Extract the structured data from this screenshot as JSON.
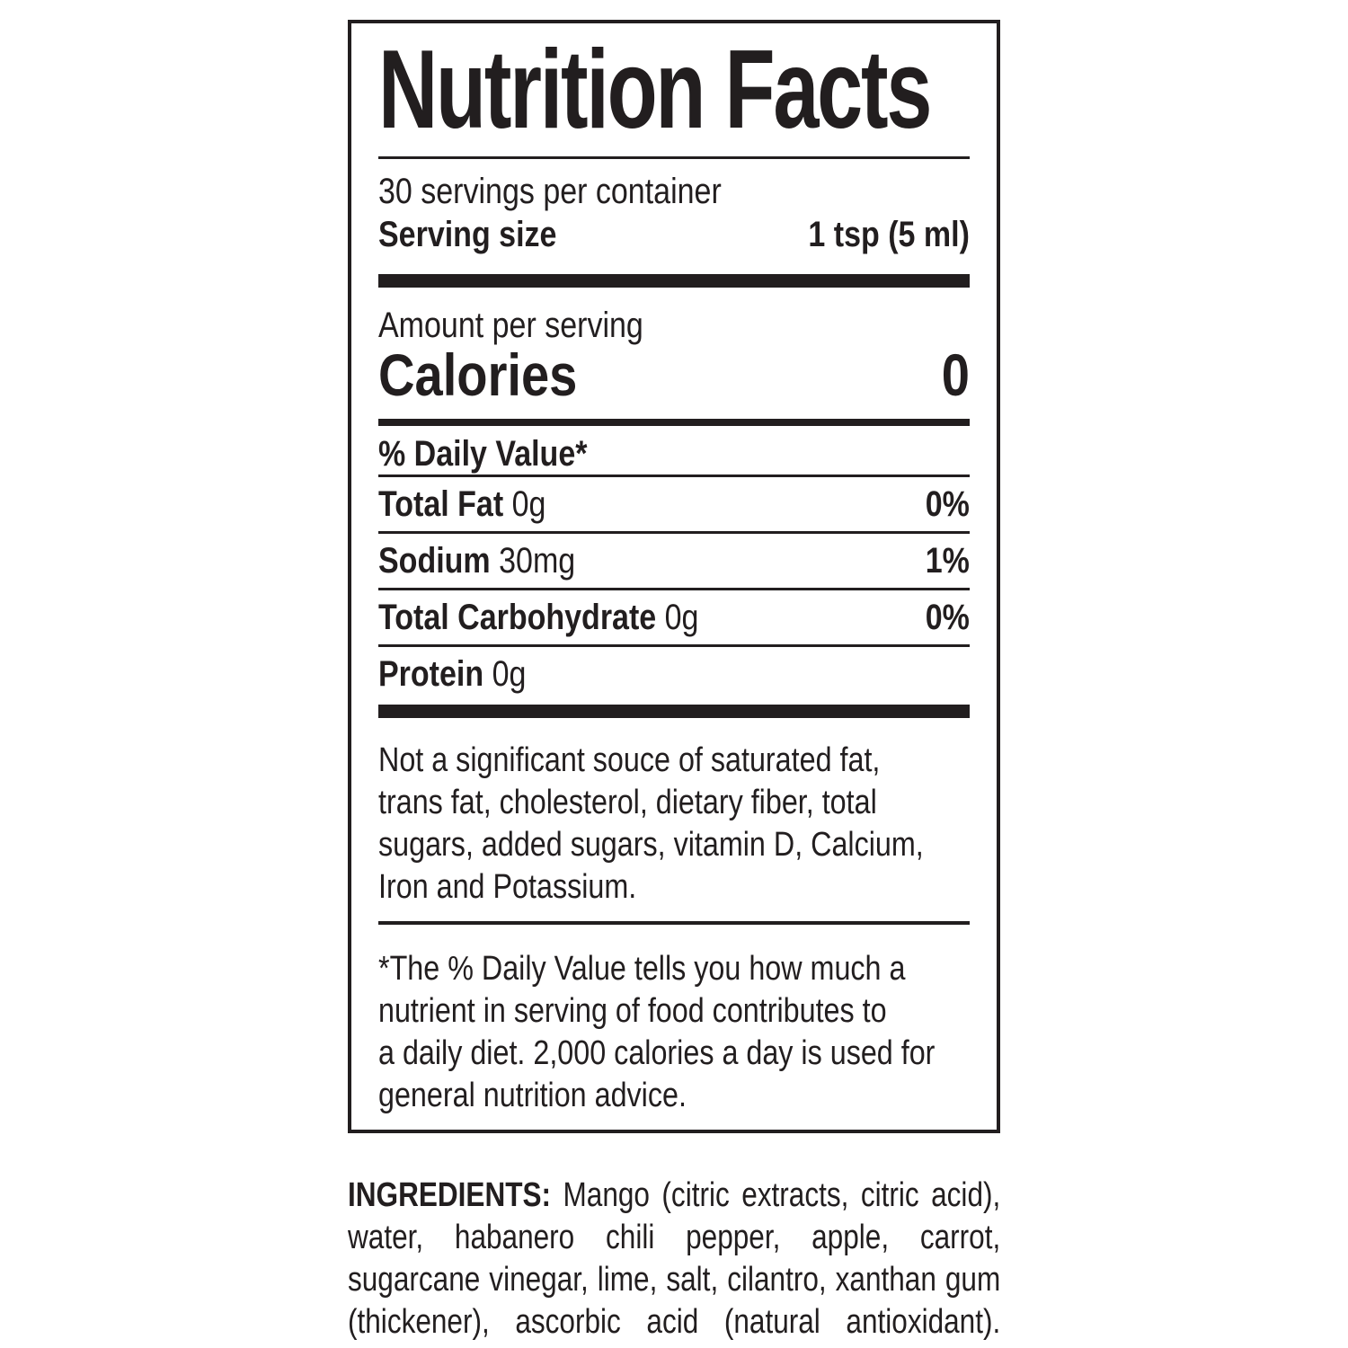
{
  "colors": {
    "text": "#221e1f",
    "background": "#ffffff"
  },
  "label": {
    "title": "Nutrition Facts",
    "servings_per_container": "30 servings per container",
    "serving_size_label": "Serving size",
    "serving_size_value": "1 tsp (5 ml)",
    "amount_per_serving": "Amount per serving",
    "calories_label": "Calories",
    "calories_value": "0",
    "daily_value_header": "% Daily Value*",
    "nutrients": [
      {
        "name": "Total Fat",
        "amount": "0g",
        "dv": "0%"
      },
      {
        "name": "Sodium",
        "amount": "30mg",
        "dv": "1%"
      },
      {
        "name": "Total Carbohydrate",
        "amount": "0g",
        "dv": "0%"
      },
      {
        "name": "Protein",
        "amount": "0g",
        "dv": ""
      }
    ],
    "note_lines": [
      "Not a significant souce of saturated fat,",
      "trans fat, cholesterol, dietary fiber, total",
      "sugars, added sugars, vitamin D, Calcium,",
      "Iron and Potassium."
    ],
    "footnote_lines": [
      "*The % Daily Value tells you how much a",
      "nutrient in serving of food contributes to",
      "a daily diet. 2,000 calories a day is used for",
      "general nutrition advice."
    ]
  },
  "ingredients": {
    "label": "INGREDIENTS:",
    "line1_rest": " Mango (citric extracts, citric acid),",
    "lines": [
      "water, habanero chili pepper, apple, carrot,",
      "sugarcane vinegar, lime, salt, cilantro, xanthan gum",
      "(thickener), ascorbic acid (natural antioxidant)."
    ]
  }
}
